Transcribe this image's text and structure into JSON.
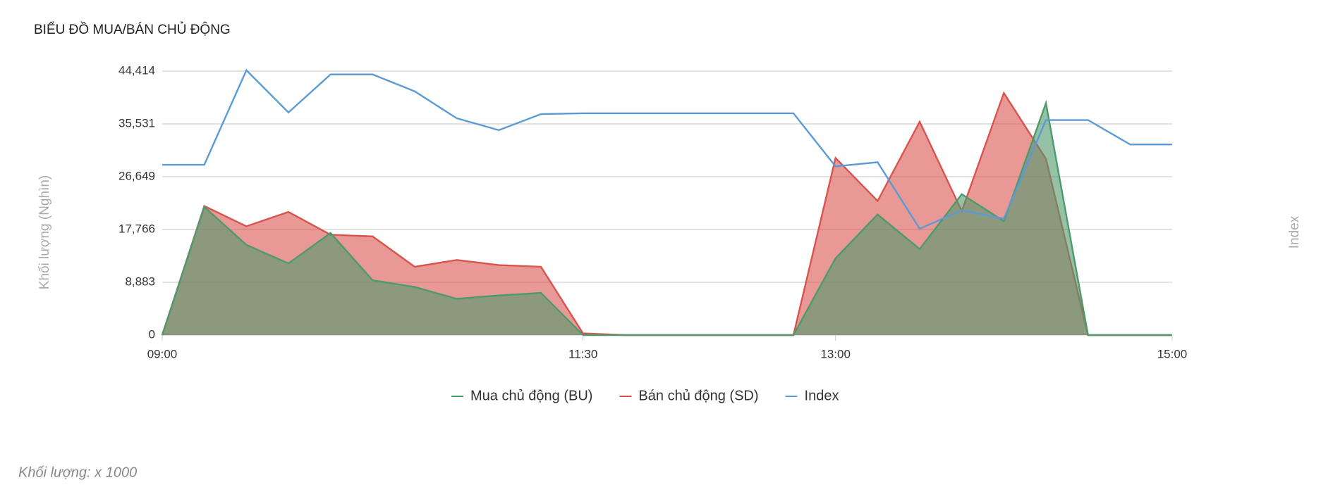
{
  "chart_data": {
    "type": "area",
    "title": "BIỂU ĐỒ MUA/BÁN CHỦ ĐỘNG",
    "y_label": "Khối lượng (Nghìn)",
    "y2_label": "Index",
    "footnote": "Khối lượng: x 1000",
    "x": [
      "09:00",
      "09:15",
      "09:30",
      "09:45",
      "10:00",
      "10:15",
      "10:30",
      "10:45",
      "11:00",
      "11:15",
      "11:30",
      "11:45",
      "12:00",
      "12:15",
      "12:30",
      "12:45",
      "13:00",
      "13:15",
      "13:30",
      "13:45",
      "14:00",
      "14:15",
      "14:30",
      "14:45",
      "15:00"
    ],
    "xlim": [
      "09:00",
      "15:00"
    ],
    "xticks": [
      "09:00",
      "11:30",
      "13:00",
      "15:00"
    ],
    "ylim": [
      0,
      44414
    ],
    "yticks": [
      0,
      {
        "value": 8883,
        "label": "8,883"
      },
      {
        "value": 17766,
        "label": "17,766"
      },
      {
        "value": 26649,
        "label": "26,649"
      },
      {
        "value": 35531,
        "label": "35,531"
      },
      {
        "value": 44414,
        "label": "44,414"
      }
    ],
    "grid": true,
    "series": [
      {
        "name": "Mua chủ động (BU)",
        "color": "#4e9a6c",
        "kind": "area",
        "values": [
          0,
          21570,
          15180,
          12060,
          17170,
          9220,
          8090,
          6100,
          6670,
          7100,
          0,
          0,
          0,
          0,
          0,
          0,
          12910,
          20290,
          14470,
          23700,
          19160,
          39020,
          0,
          0,
          0
        ]
      },
      {
        "name": "Bán chủ động (SD)",
        "color": "#d9534f",
        "kind": "area",
        "values": [
          0,
          21710,
          18300,
          20720,
          16890,
          16600,
          11490,
          12630,
          11780,
          11490,
          280,
          0,
          0,
          0,
          0,
          0,
          29800,
          22560,
          35900,
          20860,
          40730,
          29660,
          0,
          0,
          0
        ]
      },
      {
        "name": "Index",
        "color": "#5b9bd5",
        "kind": "line",
        "values": [
          28660,
          28660,
          44560,
          37460,
          43850,
          43850,
          41010,
          36470,
          34480,
          37180,
          37320,
          37320,
          37320,
          37320,
          37320,
          37320,
          28380,
          29090,
          17880,
          21000,
          19580,
          36180,
          36180,
          32070,
          32070
        ]
      }
    ]
  }
}
